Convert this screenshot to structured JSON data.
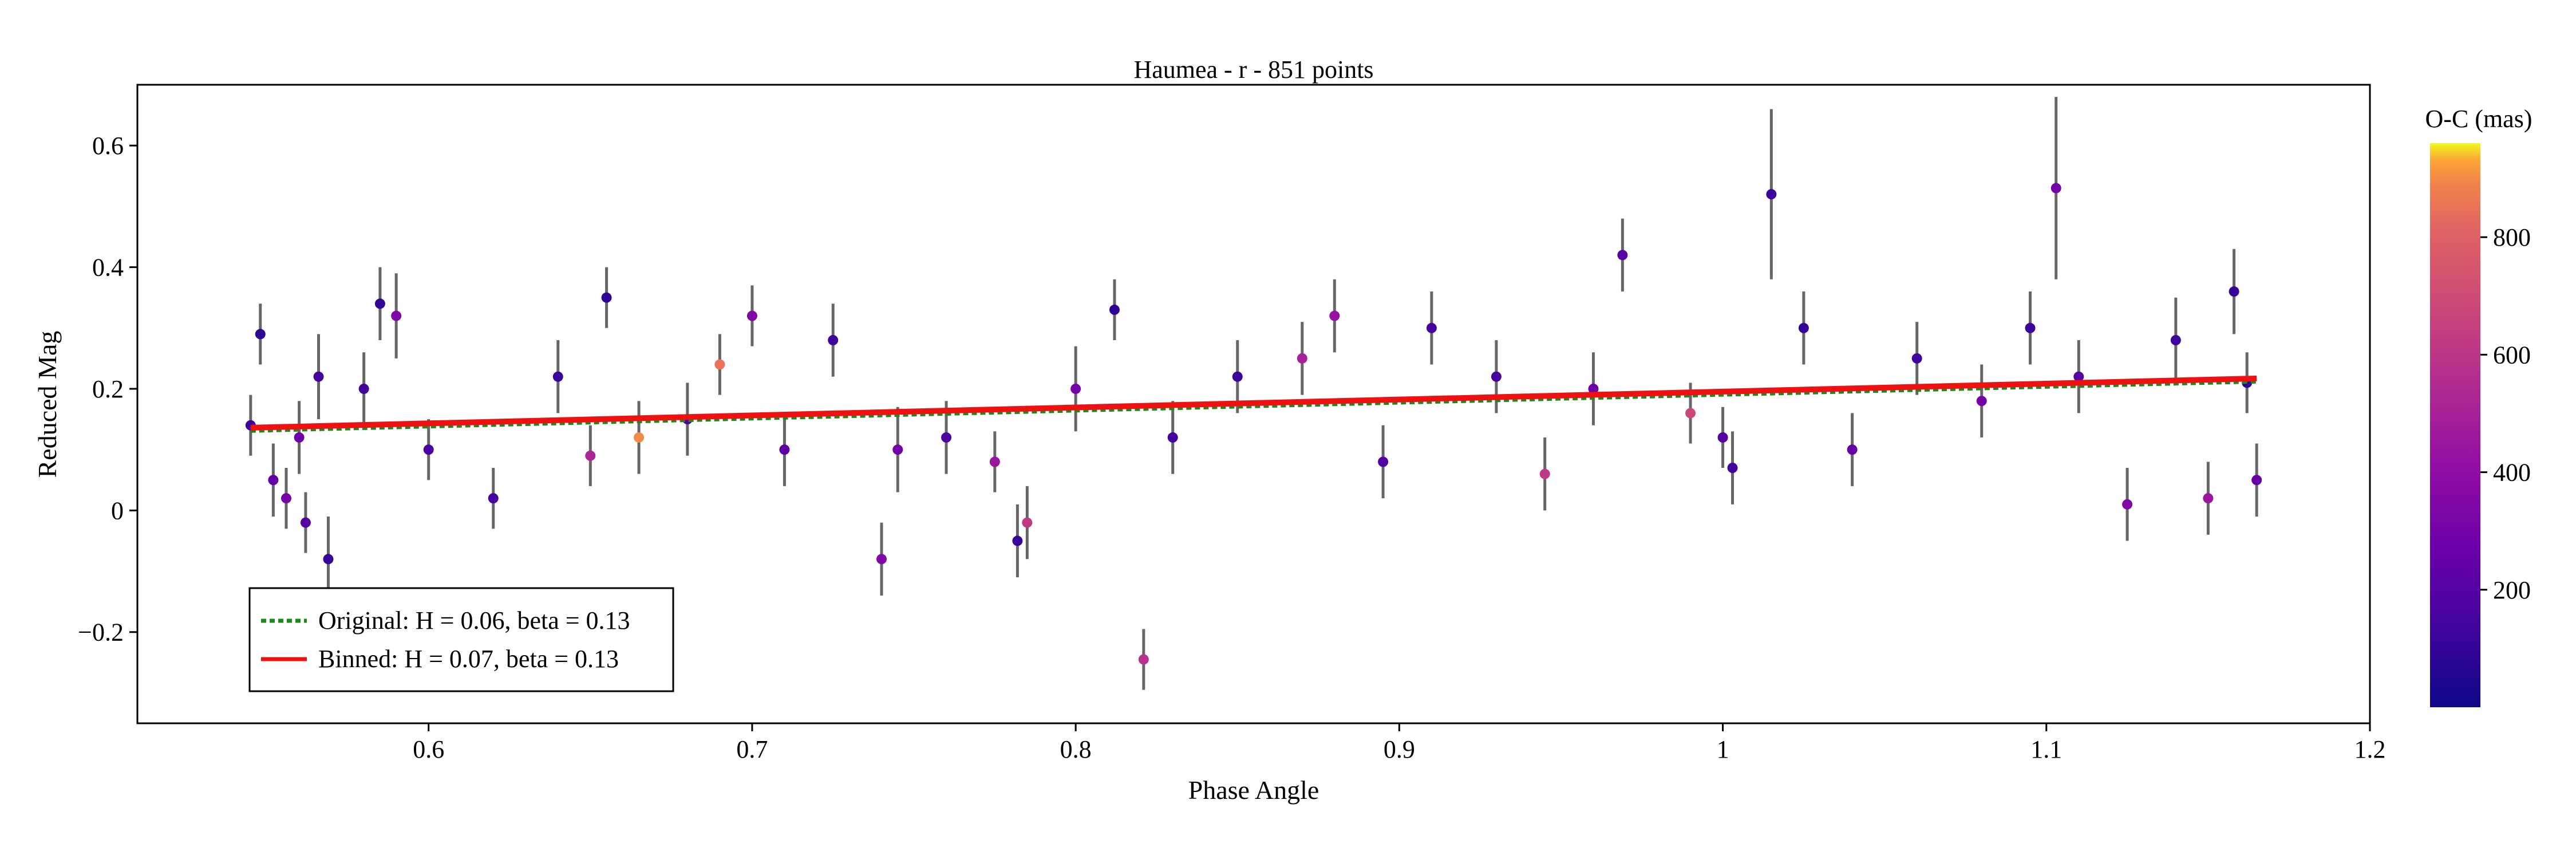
{
  "chart_data": {
    "type": "scatter",
    "title": "Haumea - r - 851 points",
    "xlabel": "Phase Angle",
    "ylabel": "Reduced Mag",
    "xlim": [
      0.51,
      1.2
    ],
    "ylim": [
      0.7,
      -0.35
    ],
    "y_inverted": true,
    "x_ticks": [
      0.6,
      0.7,
      0.8,
      0.9,
      1,
      1.1,
      1.2
    ],
    "x_tick_labels": [
      "0.6",
      "0.7",
      "0.8",
      "0.9",
      "1",
      "1.1",
      "1.2"
    ],
    "y_ticks": [
      -0.2,
      0,
      0.2,
      0.4,
      0.6
    ],
    "y_tick_labels": [
      "−0.2",
      "0",
      "0.2",
      "0.4",
      "0.6"
    ],
    "grid": false,
    "legend_position": "bottom-left",
    "n_points": 851,
    "phase_angle_range": [
      0.545,
      1.165
    ],
    "point_series": {
      "name": "Observations",
      "marker": "circle",
      "errorbar_color": "#666666",
      "color_by": "O-C (mas)",
      "sample_points": [
        {
          "x": 0.545,
          "y": 0.14,
          "err": 0.05,
          "oc": 120
        },
        {
          "x": 0.548,
          "y": 0.29,
          "err": 0.05,
          "oc": 90
        },
        {
          "x": 0.552,
          "y": 0.05,
          "err": 0.06,
          "oc": 250
        },
        {
          "x": 0.556,
          "y": 0.02,
          "err": 0.05,
          "oc": 310
        },
        {
          "x": 0.56,
          "y": 0.12,
          "err": 0.06,
          "oc": 280
        },
        {
          "x": 0.562,
          "y": -0.02,
          "err": 0.05,
          "oc": 200
        },
        {
          "x": 0.566,
          "y": 0.22,
          "err": 0.07,
          "oc": 150
        },
        {
          "x": 0.569,
          "y": -0.08,
          "err": 0.07,
          "oc": 110
        },
        {
          "x": 0.58,
          "y": 0.2,
          "err": 0.06,
          "oc": 140
        },
        {
          "x": 0.585,
          "y": 0.34,
          "err": 0.06,
          "oc": 90
        },
        {
          "x": 0.59,
          "y": 0.32,
          "err": 0.07,
          "oc": 350
        },
        {
          "x": 0.6,
          "y": 0.1,
          "err": 0.05,
          "oc": 160
        },
        {
          "x": 0.62,
          "y": 0.02,
          "err": 0.05,
          "oc": 150
        },
        {
          "x": 0.64,
          "y": 0.22,
          "err": 0.06,
          "oc": 120
        },
        {
          "x": 0.65,
          "y": 0.09,
          "err": 0.05,
          "oc": 520
        },
        {
          "x": 0.655,
          "y": 0.35,
          "err": 0.05,
          "oc": 90
        },
        {
          "x": 0.665,
          "y": 0.12,
          "err": 0.06,
          "oc": 900
        },
        {
          "x": 0.68,
          "y": 0.15,
          "err": 0.06,
          "oc": 150
        },
        {
          "x": 0.69,
          "y": 0.24,
          "err": 0.05,
          "oc": 850
        },
        {
          "x": 0.7,
          "y": 0.32,
          "err": 0.05,
          "oc": 350
        },
        {
          "x": 0.71,
          "y": 0.1,
          "err": 0.06,
          "oc": 220
        },
        {
          "x": 0.725,
          "y": 0.28,
          "err": 0.06,
          "oc": 130
        },
        {
          "x": 0.74,
          "y": -0.08,
          "err": 0.06,
          "oc": 350
        },
        {
          "x": 0.745,
          "y": 0.1,
          "err": 0.07,
          "oc": 300
        },
        {
          "x": 0.76,
          "y": 0.12,
          "err": 0.06,
          "oc": 180
        },
        {
          "x": 0.775,
          "y": 0.08,
          "err": 0.05,
          "oc": 450
        },
        {
          "x": 0.782,
          "y": -0.05,
          "err": 0.06,
          "oc": 120
        },
        {
          "x": 0.785,
          "y": -0.02,
          "err": 0.06,
          "oc": 620
        },
        {
          "x": 0.8,
          "y": 0.2,
          "err": 0.07,
          "oc": 300
        },
        {
          "x": 0.812,
          "y": 0.33,
          "err": 0.05,
          "oc": 90
        },
        {
          "x": 0.821,
          "y": -0.245,
          "err": 0.05,
          "oc": 580
        },
        {
          "x": 0.83,
          "y": 0.12,
          "err": 0.06,
          "oc": 140
        },
        {
          "x": 0.85,
          "y": 0.22,
          "err": 0.06,
          "oc": 120
        },
        {
          "x": 0.87,
          "y": 0.25,
          "err": 0.06,
          "oc": 500
        },
        {
          "x": 0.88,
          "y": 0.32,
          "err": 0.06,
          "oc": 430
        },
        {
          "x": 0.895,
          "y": 0.08,
          "err": 0.06,
          "oc": 200
        },
        {
          "x": 0.91,
          "y": 0.3,
          "err": 0.06,
          "oc": 150
        },
        {
          "x": 0.93,
          "y": 0.22,
          "err": 0.06,
          "oc": 150
        },
        {
          "x": 0.945,
          "y": 0.06,
          "err": 0.06,
          "oc": 620
        },
        {
          "x": 0.96,
          "y": 0.2,
          "err": 0.06,
          "oc": 280
        },
        {
          "x": 0.969,
          "y": 0.42,
          "err": 0.06,
          "oc": 200
        },
        {
          "x": 0.99,
          "y": 0.16,
          "err": 0.05,
          "oc": 680
        },
        {
          "x": 1.0,
          "y": 0.12,
          "err": 0.05,
          "oc": 200
        },
        {
          "x": 1.003,
          "y": 0.07,
          "err": 0.06,
          "oc": 140
        },
        {
          "x": 1.015,
          "y": 0.52,
          "err": 0.14,
          "oc": 120
        },
        {
          "x": 1.025,
          "y": 0.3,
          "err": 0.06,
          "oc": 100
        },
        {
          "x": 1.04,
          "y": 0.1,
          "err": 0.06,
          "oc": 250
        },
        {
          "x": 1.06,
          "y": 0.25,
          "err": 0.06,
          "oc": 130
        },
        {
          "x": 1.08,
          "y": 0.18,
          "err": 0.06,
          "oc": 300
        },
        {
          "x": 1.095,
          "y": 0.3,
          "err": 0.06,
          "oc": 120
        },
        {
          "x": 1.103,
          "y": 0.53,
          "err": 0.15,
          "oc": 300
        },
        {
          "x": 1.11,
          "y": 0.22,
          "err": 0.06,
          "oc": 200
        },
        {
          "x": 1.125,
          "y": 0.01,
          "err": 0.06,
          "oc": 350
        },
        {
          "x": 1.14,
          "y": 0.28,
          "err": 0.07,
          "oc": 130
        },
        {
          "x": 1.15,
          "y": 0.02,
          "err": 0.06,
          "oc": 450
        },
        {
          "x": 1.158,
          "y": 0.36,
          "err": 0.07,
          "oc": 100
        },
        {
          "x": 1.162,
          "y": 0.21,
          "err": 0.05,
          "oc": 90
        },
        {
          "x": 1.165,
          "y": 0.05,
          "err": 0.06,
          "oc": 260
        }
      ]
    },
    "fit_lines": [
      {
        "name": "Original: H = 0.06, beta = 0.13",
        "style": "dotted",
        "color": "#1a8a1a",
        "x": [
          0.545,
          1.165
        ],
        "y": [
          0.131,
          0.212
        ]
      },
      {
        "name": "Binned: H = 0.07, beta = 0.13",
        "style": "solid",
        "color": "#ee1111",
        "x": [
          0.545,
          1.165
        ],
        "y": [
          0.136,
          0.217
        ]
      }
    ],
    "colorbar": {
      "label": "O-C (mas)",
      "colormap": "plasma",
      "range": [
        0,
        960
      ],
      "ticks": [
        200,
        400,
        600,
        800
      ],
      "tick_labels": [
        "200",
        "400",
        "600",
        "800"
      ]
    }
  }
}
